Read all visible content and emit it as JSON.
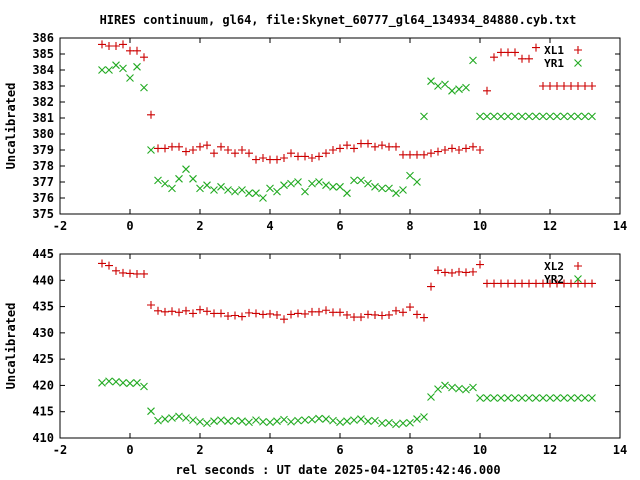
{
  "title": "HIRES continuum, gl64, file:Skynet_60777_gl64_134934_84880.cyb.txt",
  "xlabel": "rel seconds : UT date 2025-04-12T05:42:46.000",
  "colors": {
    "XL": "#cc0000",
    "YR": "#22aa22"
  },
  "chart_data": [
    {
      "type": "scatter",
      "ylabel": "Uncalibrated",
      "xlim": [
        -2,
        14
      ],
      "ylim": [
        375,
        386
      ],
      "xticks": [
        -2,
        0,
        2,
        4,
        6,
        8,
        10,
        12,
        14
      ],
      "yticks": [
        375,
        376,
        377,
        378,
        379,
        380,
        381,
        382,
        383,
        384,
        385,
        386
      ],
      "legend_position": "top-right",
      "series": [
        {
          "name": "XL1",
          "marker": "plus",
          "x": [
            -0.8,
            -0.6,
            -0.4,
            -0.2,
            0.0,
            0.2,
            0.4,
            0.6,
            0.8,
            1.0,
            1.2,
            1.4,
            1.6,
            1.8,
            2.0,
            2.2,
            2.4,
            2.6,
            2.8,
            3.0,
            3.2,
            3.4,
            3.6,
            3.8,
            4.0,
            4.2,
            4.4,
            4.6,
            4.8,
            5.0,
            5.2,
            5.4,
            5.6,
            5.8,
            6.0,
            6.2,
            6.4,
            6.6,
            6.8,
            7.0,
            7.2,
            7.4,
            7.6,
            7.8,
            8.0,
            8.2,
            8.4,
            8.6,
            8.8,
            9.0,
            9.2,
            9.4,
            9.6,
            9.8,
            10.0,
            10.2,
            10.4,
            10.6,
            10.8,
            11.0,
            11.2,
            11.4,
            11.6,
            11.8,
            12.0,
            12.2,
            12.4,
            12.6,
            12.8,
            13.0,
            13.2
          ],
          "y": [
            385.6,
            385.5,
            385.5,
            385.6,
            385.2,
            385.2,
            384.8,
            381.2,
            379.1,
            379.1,
            379.2,
            379.2,
            378.9,
            379.0,
            379.2,
            379.3,
            378.8,
            379.2,
            379.0,
            378.8,
            379.0,
            378.8,
            378.4,
            378.5,
            378.4,
            378.4,
            378.5,
            378.8,
            378.6,
            378.6,
            378.5,
            378.6,
            378.8,
            379.0,
            379.1,
            379.3,
            379.1,
            379.4,
            379.4,
            379.2,
            379.3,
            379.2,
            379.2,
            378.7,
            378.7,
            378.7,
            378.7,
            378.8,
            378.9,
            379.0,
            379.1,
            379.0,
            379.1,
            379.2,
            379.0,
            382.7,
            384.8,
            385.1,
            385.1,
            385.1,
            384.7,
            384.7,
            385.4,
            383.0,
            383.0,
            383.0,
            383.0,
            383.0,
            383.0,
            383.0,
            383.0
          ]
        },
        {
          "name": "YR1",
          "marker": "cross",
          "x": [
            -0.8,
            -0.6,
            -0.4,
            -0.2,
            0.0,
            0.2,
            0.4,
            0.6,
            0.8,
            1.0,
            1.2,
            1.4,
            1.6,
            1.8,
            2.0,
            2.2,
            2.4,
            2.6,
            2.8,
            3.0,
            3.2,
            3.4,
            3.6,
            3.8,
            4.0,
            4.2,
            4.4,
            4.6,
            4.8,
            5.0,
            5.2,
            5.4,
            5.6,
            5.8,
            6.0,
            6.2,
            6.4,
            6.6,
            6.8,
            7.0,
            7.2,
            7.4,
            7.6,
            7.8,
            8.0,
            8.2,
            8.4,
            8.6,
            8.8,
            9.0,
            9.2,
            9.4,
            9.6,
            9.8,
            10.0,
            10.2,
            10.4,
            10.6,
            10.8,
            11.0,
            11.2,
            11.4,
            11.6,
            11.8,
            12.0,
            12.2,
            12.4,
            12.6,
            12.8,
            13.0,
            13.2
          ],
          "y": [
            384.0,
            384.0,
            384.3,
            384.1,
            383.5,
            384.2,
            382.9,
            379.0,
            377.1,
            376.9,
            376.6,
            377.2,
            377.8,
            377.2,
            376.6,
            376.8,
            376.5,
            376.7,
            376.5,
            376.4,
            376.5,
            376.3,
            376.3,
            376.0,
            376.6,
            376.4,
            376.8,
            376.9,
            377.0,
            376.4,
            376.9,
            377.0,
            376.8,
            376.7,
            376.7,
            376.3,
            377.1,
            377.1,
            376.9,
            376.7,
            376.6,
            376.6,
            376.3,
            376.5,
            377.4,
            377.0,
            381.1,
            383.3,
            383.0,
            383.1,
            382.7,
            382.8,
            382.9,
            384.6,
            381.1,
            381.1,
            381.1,
            381.1,
            381.1,
            381.1,
            381.1,
            381.1,
            381.1,
            381.1,
            381.1,
            381.1,
            381.1,
            381.1,
            381.1,
            381.1,
            381.1
          ]
        }
      ]
    },
    {
      "type": "scatter",
      "ylabel": "Uncalibrated",
      "xlim": [
        -2,
        14
      ],
      "ylim": [
        410,
        445
      ],
      "xticks": [
        -2,
        0,
        2,
        4,
        6,
        8,
        10,
        12,
        14
      ],
      "yticks": [
        410,
        415,
        420,
        425,
        430,
        435,
        440,
        445
      ],
      "legend_position": "top-right",
      "series": [
        {
          "name": "XL2",
          "marker": "plus",
          "x": [
            -0.8,
            -0.6,
            -0.4,
            -0.2,
            0.0,
            0.2,
            0.4,
            0.6,
            0.8,
            1.0,
            1.2,
            1.4,
            1.6,
            1.8,
            2.0,
            2.2,
            2.4,
            2.6,
            2.8,
            3.0,
            3.2,
            3.4,
            3.6,
            3.8,
            4.0,
            4.2,
            4.4,
            4.6,
            4.8,
            5.0,
            5.2,
            5.4,
            5.6,
            5.8,
            6.0,
            6.2,
            6.4,
            6.6,
            6.8,
            7.0,
            7.2,
            7.4,
            7.6,
            7.8,
            8.0,
            8.2,
            8.4,
            8.6,
            8.8,
            9.0,
            9.2,
            9.4,
            9.6,
            9.8,
            10.0,
            10.2,
            10.4,
            10.6,
            10.8,
            11.0,
            11.2,
            11.4,
            11.6,
            11.8,
            12.0,
            12.2,
            12.4,
            12.6,
            12.8,
            13.0,
            13.2
          ],
          "y": [
            443.2,
            442.8,
            441.8,
            441.4,
            441.3,
            441.2,
            441.2,
            435.3,
            434.2,
            434.0,
            434.1,
            433.9,
            434.2,
            433.7,
            434.4,
            434.1,
            433.7,
            433.7,
            433.2,
            433.3,
            433.1,
            433.8,
            433.7,
            433.5,
            433.6,
            433.4,
            432.6,
            433.5,
            433.7,
            433.6,
            434.0,
            434.0,
            434.3,
            433.9,
            433.9,
            433.4,
            433.0,
            433.0,
            433.5,
            433.4,
            433.3,
            433.4,
            434.2,
            433.9,
            434.9,
            433.5,
            432.9,
            438.8,
            441.9,
            441.5,
            441.4,
            441.6,
            441.5,
            441.6,
            443.0,
            439.4,
            439.4,
            439.4,
            439.4,
            439.4,
            439.4,
            439.4,
            439.4,
            439.4,
            439.4,
            439.4,
            439.4,
            439.4,
            439.4,
            439.4,
            439.4
          ]
        },
        {
          "name": "YR2",
          "marker": "cross",
          "x": [
            -0.8,
            -0.6,
            -0.4,
            -0.2,
            0.0,
            0.2,
            0.4,
            0.6,
            0.8,
            1.0,
            1.2,
            1.4,
            1.6,
            1.8,
            2.0,
            2.2,
            2.4,
            2.6,
            2.8,
            3.0,
            3.2,
            3.4,
            3.6,
            3.8,
            4.0,
            4.2,
            4.4,
            4.6,
            4.8,
            5.0,
            5.2,
            5.4,
            5.6,
            5.8,
            6.0,
            6.2,
            6.4,
            6.6,
            6.8,
            7.0,
            7.2,
            7.4,
            7.6,
            7.8,
            8.0,
            8.2,
            8.4,
            8.6,
            8.8,
            9.0,
            9.2,
            9.4,
            9.6,
            9.8,
            10.0,
            10.2,
            10.4,
            10.6,
            10.8,
            11.0,
            11.2,
            11.4,
            11.6,
            11.8,
            12.0,
            12.2,
            12.4,
            12.6,
            12.8,
            13.0,
            13.2
          ],
          "y": [
            420.5,
            420.8,
            420.7,
            420.5,
            420.4,
            420.5,
            419.8,
            415.1,
            413.3,
            413.6,
            413.8,
            414.1,
            413.8,
            413.4,
            413.1,
            412.8,
            413.2,
            413.4,
            413.2,
            413.3,
            413.2,
            413.0,
            413.4,
            413.1,
            413.0,
            413.2,
            413.5,
            413.1,
            413.3,
            413.4,
            413.5,
            413.7,
            413.6,
            413.3,
            413.0,
            413.2,
            413.4,
            413.6,
            413.2,
            413.3,
            412.8,
            412.9,
            412.6,
            412.8,
            412.9,
            413.6,
            414.0,
            417.8,
            419.3,
            420.0,
            419.6,
            419.4,
            419.2,
            419.6,
            417.6,
            417.6,
            417.6,
            417.6,
            417.6,
            417.6,
            417.6,
            417.6,
            417.6,
            417.6,
            417.6,
            417.6,
            417.6,
            417.6,
            417.6,
            417.6,
            417.6
          ]
        }
      ]
    }
  ]
}
